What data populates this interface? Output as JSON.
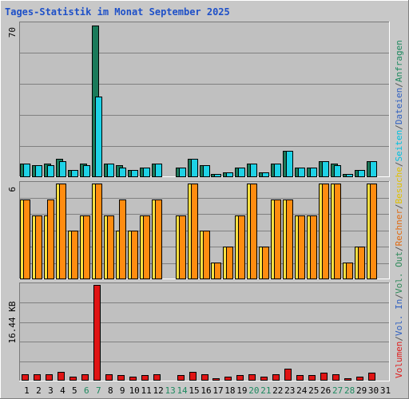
{
  "chart_data": [
    {
      "type": "bar",
      "panel": "top",
      "title": "Tages-Statistik im Monat September 2025",
      "y_max_label": "70",
      "ylim": [
        0,
        70
      ],
      "categories": [
        "1",
        "2",
        "3",
        "4",
        "5",
        "6",
        "7",
        "8",
        "9",
        "10",
        "11",
        "12",
        "13",
        "14",
        "15",
        "16",
        "17",
        "18",
        "19",
        "20",
        "21",
        "22",
        "23",
        "24",
        "25",
        "26",
        "27",
        "28",
        "29",
        "30",
        "31"
      ],
      "series": [
        {
          "name": "Anfragen",
          "values": [
            6,
            5,
            6,
            8,
            3,
            6,
            70,
            6,
            5,
            3,
            4,
            6,
            0,
            4,
            8,
            5,
            1,
            2,
            4,
            6,
            2,
            6,
            12,
            4,
            4,
            7,
            6,
            1,
            3,
            7,
            0
          ]
        },
        {
          "name": "Dateien",
          "values": [
            6,
            5,
            5,
            7,
            3,
            5,
            37,
            6,
            4,
            3,
            4,
            6,
            0,
            4,
            8,
            5,
            1,
            2,
            4,
            6,
            2,
            6,
            12,
            4,
            4,
            7,
            5,
            1,
            3,
            7,
            0
          ]
        },
        {
          "name": "Seiten",
          "values": [
            0,
            0,
            0,
            0,
            0,
            0,
            0,
            0,
            0,
            0,
            0,
            0,
            0,
            0,
            0,
            0,
            0,
            0,
            0,
            0,
            0,
            0,
            0,
            0,
            0,
            0,
            0,
            0,
            0,
            0,
            0
          ]
        }
      ]
    },
    {
      "type": "bar",
      "panel": "middle",
      "y_max_label": "6",
      "ylim": [
        0,
        6
      ],
      "series": [
        {
          "name": "Besuche",
          "values": [
            5,
            4,
            4,
            6,
            3,
            4,
            6,
            4,
            3,
            3,
            4,
            5,
            0,
            4,
            6,
            3,
            1,
            2,
            4,
            6,
            2,
            5,
            5,
            4,
            4,
            6,
            6,
            1,
            2,
            6,
            0
          ]
        },
        {
          "name": "Rechner",
          "values": [
            5,
            4,
            5,
            6,
            3,
            4,
            6,
            4,
            5,
            3,
            4,
            5,
            0,
            4,
            6,
            3,
            1,
            2,
            4,
            6,
            2,
            5,
            5,
            4,
            4,
            6,
            6,
            1,
            2,
            6,
            0
          ]
        }
      ]
    },
    {
      "type": "bar",
      "panel": "bottom",
      "y_max_label": "16.44 KB",
      "ylim": [
        0,
        16.44
      ],
      "unit": "KB",
      "series": [
        {
          "name": "Volumen",
          "values": [
            1.0,
            1.0,
            1.0,
            1.4,
            0.6,
            1.0,
            16.44,
            1.0,
            0.8,
            0.6,
            0.8,
            1.0,
            0,
            0.8,
            1.4,
            0.9,
            0.3,
            0.5,
            0.8,
            1.0,
            0.5,
            1.0,
            1.9,
            0.8,
            0.8,
            1.2,
            1.0,
            0.3,
            0.6,
            1.2,
            0
          ]
        },
        {
          "name": "Vol. In",
          "values": [
            0,
            0,
            0,
            0,
            0,
            0,
            0,
            0,
            0,
            0,
            0,
            0,
            0,
            0,
            0,
            0,
            0,
            0,
            0,
            0,
            0,
            0,
            0,
            0,
            0,
            0,
            0,
            0,
            0,
            0,
            0
          ]
        },
        {
          "name": "Vol. Out",
          "values": [
            0,
            0,
            0,
            0,
            0,
            0,
            0,
            0,
            0,
            0,
            0,
            0,
            0,
            0,
            0,
            0,
            0,
            0,
            0,
            0,
            0,
            0,
            0,
            0,
            0,
            0,
            0,
            0,
            0,
            0,
            0
          ]
        }
      ]
    }
  ],
  "weekend_days": [
    "6",
    "7",
    "13",
    "14",
    "20",
    "21",
    "27",
    "28"
  ],
  "legend": [
    {
      "label": "Volumen",
      "color": "#e01e1e"
    },
    {
      "label": "/",
      "color": "#555555"
    },
    {
      "label": "Vol. In",
      "color": "#3060c0"
    },
    {
      "label": "/",
      "color": "#555555"
    },
    {
      "label": "Vol. Out",
      "color": "#2f8a5a"
    },
    {
      "label": "/",
      "color": "#555555"
    },
    {
      "label": "Rechner",
      "color": "#e06a10"
    },
    {
      "label": "/",
      "color": "#555555"
    },
    {
      "label": "Besuche",
      "color": "#e0c000"
    },
    {
      "label": "/",
      "color": "#555555"
    },
    {
      "label": "Seiten",
      "color": "#00c0e0"
    },
    {
      "label": "/",
      "color": "#555555"
    },
    {
      "label": "Dateien",
      "color": "#3060c0"
    },
    {
      "label": "/",
      "color": "#555555"
    },
    {
      "label": "Anfragen",
      "color": "#1e8a60"
    }
  ],
  "colors": {
    "title": "#1e50c8",
    "weekend_label": "#1e8a60",
    "weekday_label": "#000000",
    "anfragen": "#1a7a5a",
    "dateien": "#1ed2e6",
    "besuche": "#ffe040",
    "rechner": "#ff8c10",
    "volumen": "#e01414",
    "plot_bg": "#c0c0c0",
    "outer_bg": "#c8c8c8",
    "grid": "#808080"
  }
}
